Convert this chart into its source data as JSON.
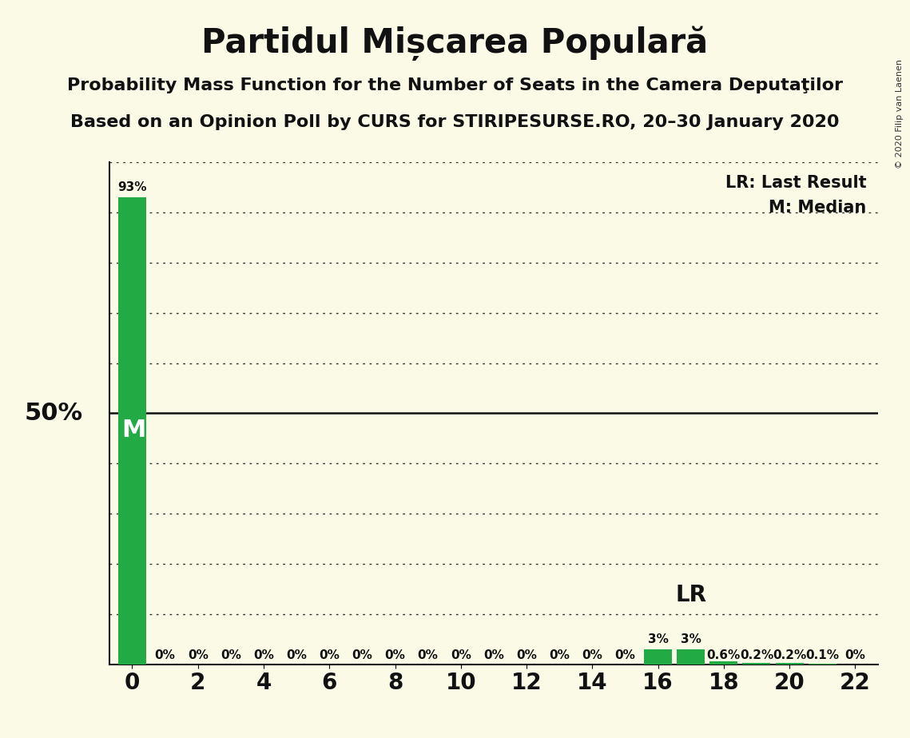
{
  "title": "Partidul Mișcarea Populară",
  "subtitle1": "Probability Mass Function for the Number of Seats in the Camera Deputaţilor",
  "subtitle2": "Based on an Opinion Poll by CURS for STIRIPESURSE.RO, 20–30 January 2020",
  "copyright": "© 2020 Filip van Laenen",
  "background_color": "#fafae6",
  "bar_color": "#22aa44",
  "seats": [
    0,
    1,
    2,
    3,
    4,
    5,
    6,
    7,
    8,
    9,
    10,
    11,
    12,
    13,
    14,
    15,
    16,
    17,
    18,
    19,
    20,
    21,
    22
  ],
  "probs": [
    93,
    0,
    0,
    0,
    0,
    0,
    0,
    0,
    0,
    0,
    0,
    0,
    0,
    0,
    0,
    0,
    3,
    3,
    0.6,
    0.2,
    0.2,
    0.1,
    0
  ],
  "labels": [
    "93%",
    "0%",
    "0%",
    "0%",
    "0%",
    "0%",
    "0%",
    "0%",
    "0%",
    "0%",
    "0%",
    "0%",
    "0%",
    "0%",
    "0%",
    "0%",
    "3%",
    "3%",
    "0.6%",
    "0.2%",
    "0.2%",
    "0.1%",
    "0%"
  ],
  "median_seat": 0,
  "lr_seat": 17,
  "ylim": [
    0,
    100
  ],
  "xlim": [
    -0.7,
    22.7
  ],
  "dotted_y_values": [
    10,
    20,
    30,
    40,
    60,
    70,
    80,
    90,
    100
  ],
  "solid_y_value": 50,
  "lr_y_value": 10,
  "title_fontsize": 30,
  "subtitle_fontsize": 16,
  "axis_label_fontsize": 22,
  "bar_label_fontsize": 11,
  "tick_fontsize": 20,
  "legend_fontsize": 15,
  "lr_fontsize": 20,
  "m_fontsize": 22,
  "copyright_fontsize": 8
}
